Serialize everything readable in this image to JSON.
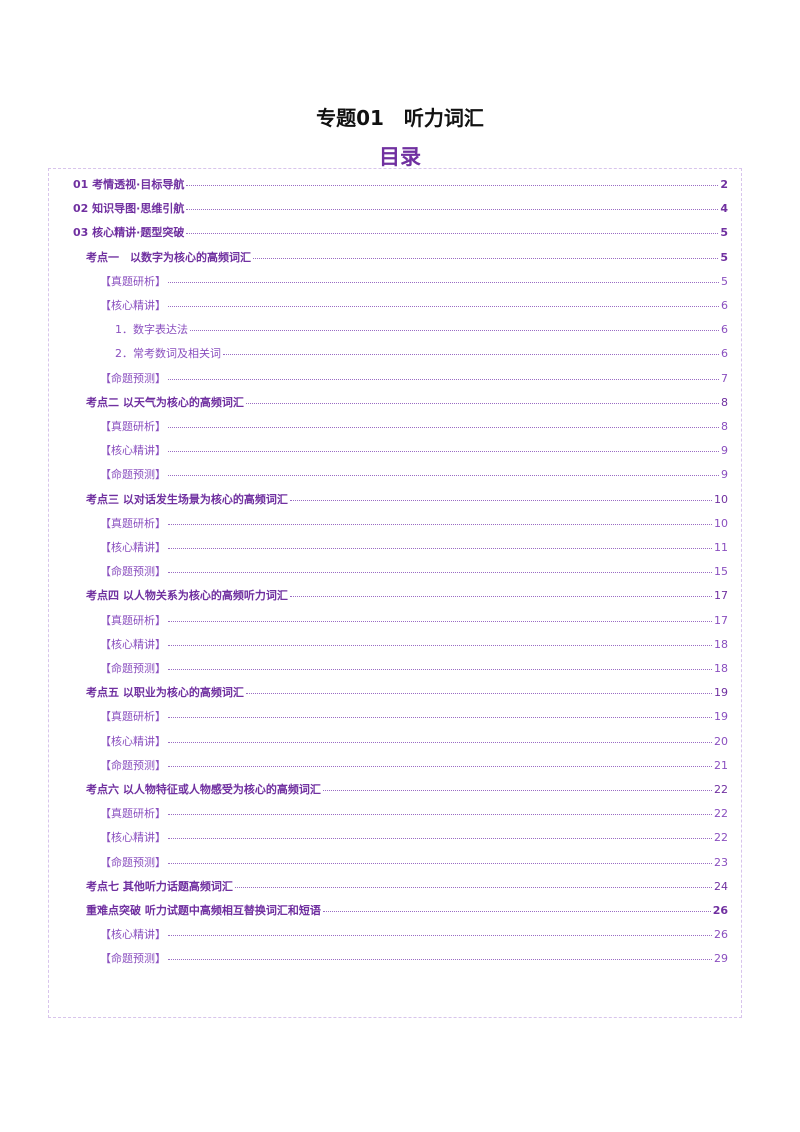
{
  "title": "专题01　听力词汇",
  "toc_title": "目录",
  "accent_color": "#7030a0",
  "toc": [
    {
      "label": "01 考情透视·目标导航",
      "page": "2",
      "level": 0
    },
    {
      "label": "02 知识导图·思维引航",
      "page": "4",
      "level": 0
    },
    {
      "label": "03 核心精讲·题型突破",
      "page": "5",
      "level": 0
    },
    {
      "label": "考点一　以数字为核心的高频词汇",
      "page": "5",
      "level": 1
    },
    {
      "label": "【真题研析】",
      "page": "5",
      "level": 2
    },
    {
      "label": "【核心精讲】",
      "page": "6",
      "level": 2
    },
    {
      "label": "1．数字表达法",
      "page": "6",
      "level": 3
    },
    {
      "label": "2．常考数词及相关词",
      "page": "6",
      "level": 3
    },
    {
      "label": "【命题预测】",
      "page": "7",
      "level": 2
    },
    {
      "label": "考点二 以天气为核心的高频词汇",
      "page": "8",
      "level": 1
    },
    {
      "label": "【真题研析】",
      "page": "8",
      "level": 2
    },
    {
      "label": "【核心精讲】",
      "page": "9",
      "level": 2
    },
    {
      "label": "【命题预测】",
      "page": "9",
      "level": 2
    },
    {
      "label": "考点三 以对话发生场景为核心的高频词汇",
      "page": "10",
      "level": 1
    },
    {
      "label": "【真题研析】",
      "page": "10",
      "level": 2
    },
    {
      "label": "【核心精讲】",
      "page": "11",
      "level": 2
    },
    {
      "label": "【命题预测】",
      "page": "15",
      "level": 2
    },
    {
      "label": "考点四 以人物关系为核心的高频听力词汇",
      "page": "17",
      "level": 1
    },
    {
      "label": "【真题研析】",
      "page": "17",
      "level": 2
    },
    {
      "label": "【核心精讲】",
      "page": "18",
      "level": 2
    },
    {
      "label": "【命题预测】",
      "page": "18",
      "level": 2
    },
    {
      "label": "考点五 以职业为核心的高频词汇",
      "page": "19",
      "level": 1
    },
    {
      "label": "【真题研析】",
      "page": "19",
      "level": 2
    },
    {
      "label": "【核心精讲】",
      "page": "20",
      "level": 2
    },
    {
      "label": "【命题预测】",
      "page": "21",
      "level": 2
    },
    {
      "label": "考点六 以人物特征或人物感受为核心的高频词汇",
      "page": "22",
      "level": 1
    },
    {
      "label": "【真题研析】",
      "page": "22",
      "level": 2
    },
    {
      "label": "【核心精讲】",
      "page": "22",
      "level": 2
    },
    {
      "label": "【命题预测】",
      "page": "23",
      "level": 2
    },
    {
      "label": "考点七 其他听力话题高频词汇",
      "page": "24",
      "level": 1
    },
    {
      "label": "重难点突破 听力试题中高频相互替换词汇和短语",
      "page": "26",
      "level": 1,
      "bold_page": true
    },
    {
      "label": "【核心精讲】",
      "page": "26",
      "level": 2
    },
    {
      "label": "【命题预测】",
      "page": "29",
      "level": 2
    }
  ]
}
